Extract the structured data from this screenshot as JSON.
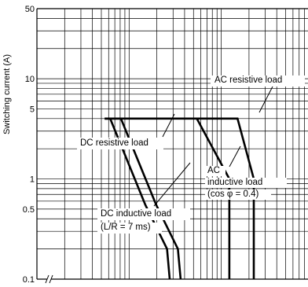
{
  "chart_data": {
    "type": "line",
    "title": "",
    "xlabel": "",
    "ylabel": "Switching current (A)",
    "yscale": "log",
    "ylim": [
      0.1,
      50
    ],
    "xscale": "log",
    "xticks_labeled": false,
    "grid": true,
    "yticks": [
      {
        "value": 0.1,
        "label": "0.1"
      },
      {
        "value": 0.5,
        "label": "0.5"
      },
      {
        "value": 1,
        "label": "1"
      },
      {
        "value": 5,
        "label": "5"
      },
      {
        "value": 10,
        "label": "10"
      },
      {
        "value": 50,
        "label": "50"
      }
    ],
    "series": [
      {
        "name": "DC resistive load",
        "points": [
          [
            0.25,
            4
          ],
          [
            0.31,
            4
          ],
          [
            0.37,
            1.6
          ],
          [
            0.44,
            0.55
          ],
          [
            0.52,
            0.2
          ],
          [
            0.53,
            0.1
          ]
        ]
      },
      {
        "name": "DC inductive load (L/R = 7 ms)",
        "points": [
          [
            0.25,
            4
          ],
          [
            0.27,
            4
          ],
          [
            0.33,
            1.6
          ],
          [
            0.4,
            0.55
          ],
          [
            0.48,
            0.2
          ],
          [
            0.49,
            0.1
          ]
        ]
      },
      {
        "name": "AC resistive load",
        "points": [
          [
            0.25,
            4
          ],
          [
            0.74,
            4
          ],
          [
            0.8,
            1.0
          ],
          [
            0.8,
            0.1
          ]
        ]
      },
      {
        "name": "AC inductive load (cos φ = 0.4)",
        "points": [
          [
            0.59,
            4
          ],
          [
            0.71,
            1.0
          ],
          [
            0.71,
            0.1
          ]
        ]
      }
    ],
    "annotations": [
      {
        "key": "ac_res",
        "text": "AC resistive load"
      },
      {
        "key": "dc_res",
        "text": "DC resistive load"
      },
      {
        "key": "ac_ind_1",
        "text": "AC"
      },
      {
        "key": "ac_ind_2",
        "text": "inductive load"
      },
      {
        "key": "ac_ind_3",
        "text": "(cos φ = 0.4)"
      },
      {
        "key": "dc_ind_1",
        "text": "DC inductive load"
      },
      {
        "key": "dc_ind_2",
        "text": "(L/R = 7 ms)"
      }
    ]
  }
}
